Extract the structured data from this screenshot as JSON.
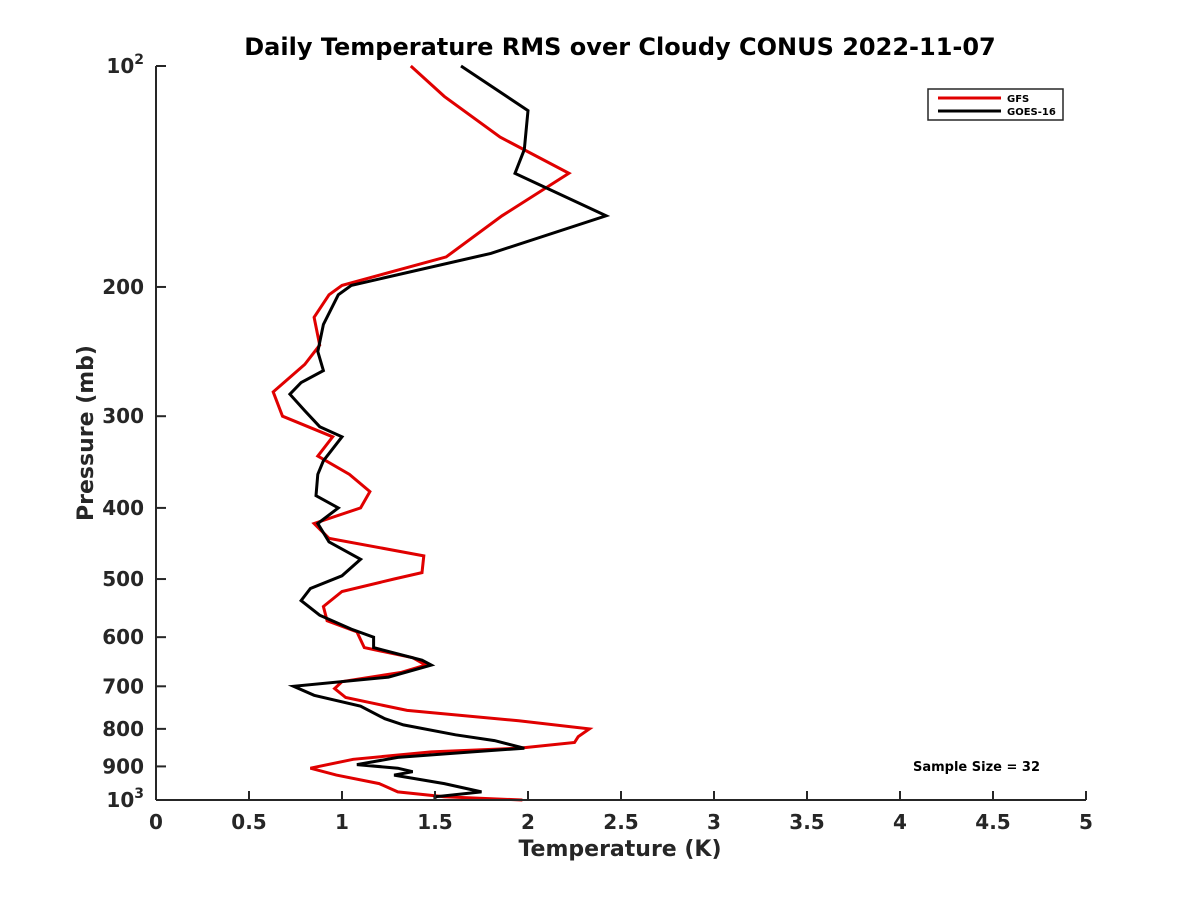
{
  "chart_data": {
    "type": "line",
    "title": "Daily Temperature RMS over Cloudy CONUS 2022-11-07",
    "xlabel": "Temperature (K)",
    "ylabel": "Pressure (mb)",
    "xlim": [
      0,
      5
    ],
    "ylim": [
      100,
      1000
    ],
    "y_scale": "log",
    "y_reversed": true,
    "x_ticks": [
      0,
      0.5,
      1,
      1.5,
      2,
      2.5,
      3,
      3.5,
      4,
      4.5,
      5
    ],
    "x_tick_labels": [
      "0",
      "0.5",
      "1",
      "1.5",
      "2",
      "2.5",
      "3",
      "3.5",
      "4",
      "4.5",
      "5"
    ],
    "y_ticks": [
      100,
      200,
      300,
      400,
      500,
      600,
      700,
      800,
      900,
      1000
    ],
    "y_tick_labels": [
      "10^2",
      "200",
      "300",
      "400",
      "500",
      "600",
      "700",
      "800",
      "900",
      "10^3"
    ],
    "grid": false,
    "legend_position": "top-right",
    "annotation": "Sample Size = 32",
    "series": [
      {
        "name": "GFS",
        "color": "#e00000",
        "points": [
          [
            1.37,
            100
          ],
          [
            1.55,
            110
          ],
          [
            1.85,
            125
          ],
          [
            2.22,
            140
          ],
          [
            1.86,
            160
          ],
          [
            1.56,
            182
          ],
          [
            1.0,
            199
          ],
          [
            0.93,
            205
          ],
          [
            0.85,
            220
          ],
          [
            0.88,
            240
          ],
          [
            0.8,
            255
          ],
          [
            0.63,
            278
          ],
          [
            0.68,
            300
          ],
          [
            0.95,
            320
          ],
          [
            0.87,
            340
          ],
          [
            1.04,
            360
          ],
          [
            1.15,
            380
          ],
          [
            1.1,
            400
          ],
          [
            0.85,
            420
          ],
          [
            0.93,
            440
          ],
          [
            1.44,
            465
          ],
          [
            1.43,
            490
          ],
          [
            1.28,
            500
          ],
          [
            1.0,
            520
          ],
          [
            0.9,
            545
          ],
          [
            0.92,
            570
          ],
          [
            1.08,
            590
          ],
          [
            1.1,
            605
          ],
          [
            1.12,
            620
          ],
          [
            1.38,
            640
          ],
          [
            1.45,
            655
          ],
          [
            1.32,
            670
          ],
          [
            1.0,
            690
          ],
          [
            0.96,
            705
          ],
          [
            1.02,
            725
          ],
          [
            1.35,
            755
          ],
          [
            1.95,
            780
          ],
          [
            2.33,
            800
          ],
          [
            2.27,
            820
          ],
          [
            2.25,
            835
          ],
          [
            1.95,
            850
          ],
          [
            1.48,
            860
          ],
          [
            1.06,
            880
          ],
          [
            0.83,
            905
          ],
          [
            0.97,
            925
          ],
          [
            1.2,
            950
          ],
          [
            1.3,
            975
          ],
          [
            1.55,
            990
          ],
          [
            1.97,
            1000
          ]
        ]
      },
      {
        "name": "GOES-16",
        "color": "#000000",
        "points": [
          [
            1.64,
            100
          ],
          [
            2.0,
            115
          ],
          [
            1.98,
            130
          ],
          [
            1.93,
            140
          ],
          [
            2.42,
            160
          ],
          [
            1.8,
            180
          ],
          [
            1.05,
            199
          ],
          [
            0.98,
            205
          ],
          [
            0.9,
            225
          ],
          [
            0.87,
            245
          ],
          [
            0.9,
            260
          ],
          [
            0.78,
            270
          ],
          [
            0.72,
            280
          ],
          [
            0.8,
            295
          ],
          [
            0.88,
            310
          ],
          [
            1.0,
            320
          ],
          [
            0.9,
            345
          ],
          [
            0.87,
            360
          ],
          [
            0.86,
            385
          ],
          [
            0.98,
            400
          ],
          [
            0.87,
            420
          ],
          [
            0.93,
            445
          ],
          [
            1.1,
            470
          ],
          [
            1.0,
            495
          ],
          [
            0.83,
            515
          ],
          [
            0.78,
            535
          ],
          [
            0.88,
            560
          ],
          [
            1.05,
            585
          ],
          [
            1.17,
            600
          ],
          [
            1.17,
            620
          ],
          [
            1.43,
            645
          ],
          [
            1.48,
            655
          ],
          [
            1.25,
            680
          ],
          [
            0.74,
            700
          ],
          [
            0.85,
            720
          ],
          [
            1.1,
            745
          ],
          [
            1.23,
            775
          ],
          [
            1.33,
            790
          ],
          [
            1.61,
            815
          ],
          [
            1.82,
            830
          ],
          [
            1.98,
            850
          ],
          [
            1.7,
            860
          ],
          [
            1.3,
            875
          ],
          [
            1.08,
            895
          ],
          [
            1.3,
            905
          ],
          [
            1.38,
            915
          ],
          [
            1.28,
            925
          ],
          [
            1.55,
            950
          ],
          [
            1.75,
            975
          ],
          [
            1.5,
            990
          ],
          [
            1.5,
            1000
          ]
        ]
      }
    ]
  }
}
